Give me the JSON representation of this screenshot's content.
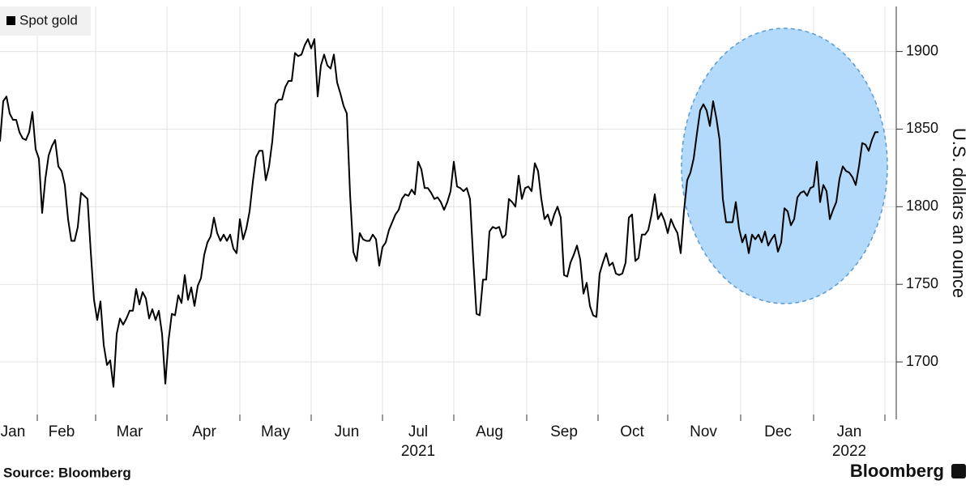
{
  "chart_data": {
    "type": "line",
    "y_label": "U.S. dollars an ounce",
    "source": "Source: Bloomberg",
    "logo": "Bloomberg",
    "categories": [
      null,
      null,
      null,
      null,
      "Jan",
      null,
      null,
      null,
      null,
      null,
      null,
      null,
      null,
      null,
      null,
      null,
      null,
      null,
      null,
      "Feb",
      null,
      null,
      null,
      null,
      null,
      null,
      null,
      null,
      null,
      null,
      null,
      null,
      null,
      null,
      null,
      null,
      null,
      null,
      null,
      null,
      "Mar",
      null,
      null,
      null,
      null,
      null,
      null,
      null,
      null,
      null,
      null,
      null,
      null,
      null,
      null,
      null,
      null,
      null,
      null,
      null,
      null,
      null,
      null,
      "Apr",
      null,
      null,
      null,
      null,
      null,
      null,
      null,
      null,
      null,
      null,
      null,
      null,
      null,
      null,
      null,
      null,
      null,
      null,
      null,
      null,
      null,
      "May",
      null,
      null,
      null,
      null,
      null,
      null,
      null,
      null,
      null,
      null,
      null,
      null,
      null,
      null,
      null,
      null,
      null,
      null,
      null,
      null,
      null,
      "Jun",
      null,
      null,
      null,
      null,
      null,
      null,
      null,
      null,
      null,
      null,
      null,
      null,
      null,
      null,
      null,
      null,
      null,
      null,
      null,
      null,
      null,
      "Jul",
      null,
      null,
      null,
      null,
      null,
      null,
      null,
      null,
      null,
      null,
      null,
      null,
      null,
      null,
      null,
      null,
      null,
      null,
      null,
      null,
      null,
      "Aug",
      null,
      null,
      null,
      null,
      null,
      null,
      null,
      null,
      null,
      null,
      null,
      null,
      null,
      null,
      null,
      null,
      null,
      null,
      null,
      null,
      null,
      null,
      "Sep",
      null,
      null,
      null,
      null,
      null,
      null,
      null,
      null,
      null,
      null,
      null,
      null,
      null,
      null,
      null,
      null,
      null,
      null,
      null,
      null,
      "Oct",
      null,
      null,
      null,
      null,
      null,
      null,
      null,
      null,
      null,
      null,
      null,
      null,
      null,
      null,
      null,
      null,
      null,
      null,
      null,
      null,
      null,
      "Nov",
      null,
      null,
      null,
      null,
      null,
      null,
      null,
      null,
      null,
      null,
      null,
      null,
      null,
      null,
      null,
      null,
      null,
      null,
      null,
      null,
      null,
      null,
      "Dec",
      null,
      null,
      null,
      null,
      null,
      null,
      null,
      null,
      null,
      null,
      null,
      null,
      null,
      null,
      null,
      null,
      null,
      null,
      null,
      null,
      null,
      "Jan",
      null,
      null,
      null,
      null,
      null,
      null,
      null,
      null,
      null
    ],
    "category_years": [
      null,
      null,
      null,
      null,
      null,
      null,
      null,
      null,
      null,
      null,
      null,
      null,
      null,
      null,
      null,
      null,
      null,
      null,
      null,
      null,
      null,
      null,
      null,
      null,
      null,
      null,
      null,
      null,
      null,
      null,
      null,
      null,
      null,
      null,
      null,
      null,
      null,
      null,
      null,
      null,
      null,
      null,
      null,
      null,
      null,
      null,
      null,
      null,
      null,
      null,
      null,
      null,
      null,
      null,
      null,
      null,
      null,
      null,
      null,
      null,
      null,
      null,
      null,
      null,
      null,
      null,
      null,
      null,
      null,
      null,
      null,
      null,
      null,
      null,
      null,
      null,
      null,
      null,
      null,
      null,
      null,
      null,
      null,
      null,
      null,
      null,
      null,
      null,
      null,
      null,
      null,
      null,
      null,
      null,
      null,
      null,
      null,
      null,
      null,
      null,
      null,
      null,
      null,
      null,
      null,
      null,
      null,
      null,
      null,
      null,
      null,
      null,
      null,
      null,
      null,
      null,
      null,
      null,
      null,
      null,
      null,
      null,
      null,
      null,
      null,
      null,
      null,
      null,
      null,
      "2021",
      null,
      null,
      null,
      null,
      null,
      null,
      null,
      null,
      null,
      null,
      null,
      null,
      null,
      null,
      null,
      null,
      null,
      null,
      null,
      null,
      null,
      null,
      null,
      null,
      null,
      null,
      null,
      null,
      null,
      null,
      null,
      null,
      null,
      null,
      null,
      null,
      null,
      null,
      null,
      null,
      null,
      null,
      null,
      null,
      null,
      null,
      null,
      null,
      null,
      null,
      null,
      null,
      null,
      null,
      null,
      null,
      null,
      null,
      null,
      null,
      null,
      null,
      null,
      null,
      null,
      null,
      null,
      null,
      null,
      null,
      null,
      null,
      null,
      null,
      null,
      null,
      null,
      null,
      null,
      null,
      null,
      null,
      null,
      null,
      null,
      null,
      null,
      null,
      null,
      null,
      null,
      null,
      null,
      null,
      null,
      null,
      null,
      null,
      null,
      null,
      null,
      null,
      null,
      null,
      null,
      null,
      null,
      null,
      null,
      null,
      null,
      null,
      null,
      null,
      null,
      null,
      null,
      null,
      null,
      null,
      null,
      null,
      null,
      null,
      null,
      null,
      null,
      null,
      null,
      null,
      null,
      null,
      "2022",
      null,
      null,
      null,
      null,
      null,
      null,
      null,
      null,
      null
    ],
    "series": [
      {
        "name": "Spot gold",
        "color": "#000000",
        "values": [
          1842,
          1868,
          1871,
          1860,
          1856,
          1856,
          1848,
          1844,
          1843,
          1848,
          1861,
          1837,
          1831,
          1796,
          1818,
          1833,
          1839,
          1843,
          1826,
          1823,
          1814,
          1792,
          1778,
          1778,
          1787,
          1809,
          1807,
          1805,
          1771,
          1740,
          1727,
          1739,
          1711,
          1698,
          1701,
          1684,
          1718,
          1728,
          1724,
          1728,
          1733,
          1733,
          1747,
          1737,
          1745,
          1741,
          1728,
          1734,
          1727,
          1733,
          1718,
          1686,
          1714,
          1731,
          1730,
          1743,
          1738,
          1756,
          1740,
          1748,
          1736,
          1749,
          1754,
          1769,
          1777,
          1781,
          1793,
          1783,
          1778,
          1782,
          1778,
          1782,
          1773,
          1770,
          1792,
          1779,
          1786,
          1797,
          1816,
          1832,
          1836,
          1836,
          1817,
          1826,
          1842,
          1866,
          1869,
          1869,
          1877,
          1881,
          1881,
          1899,
          1897,
          1898,
          1904,
          1908,
          1902,
          1908,
          1871,
          1891,
          1898,
          1891,
          1889,
          1898,
          1880,
          1873,
          1865,
          1860,
          1808,
          1771,
          1765,
          1783,
          1779,
          1778,
          1778,
          1782,
          1779,
          1762,
          1774,
          1777,
          1785,
          1790,
          1795,
          1798,
          1805,
          1808,
          1807,
          1811,
          1808,
          1829,
          1824,
          1812,
          1812,
          1809,
          1805,
          1806,
          1803,
          1798,
          1803,
          1810,
          1829,
          1813,
          1812,
          1810,
          1812,
          1805,
          1766,
          1731,
          1730,
          1753,
          1753,
          1784,
          1787,
          1786,
          1787,
          1780,
          1782,
          1805,
          1803,
          1800,
          1820,
          1805,
          1812,
          1813,
          1810,
          1828,
          1823,
          1805,
          1792,
          1795,
          1788,
          1795,
          1800,
          1793,
          1756,
          1755,
          1764,
          1769,
          1775,
          1766,
          1744,
          1751,
          1736,
          1730,
          1729,
          1757,
          1764,
          1770,
          1762,
          1764,
          1757,
          1756,
          1757,
          1764,
          1793,
          1795,
          1765,
          1767,
          1782,
          1782,
          1785,
          1795,
          1808,
          1792,
          1796,
          1791,
          1783,
          1792,
          1787,
          1783,
          1770,
          1797,
          1817,
          1822,
          1831,
          1847,
          1862,
          1866,
          1862,
          1852,
          1868,
          1857,
          1843,
          1805,
          1790,
          1790,
          1790,
          1803,
          1786,
          1777,
          1782,
          1770,
          1782,
          1779,
          1782,
          1777,
          1784,
          1775,
          1779,
          1782,
          1771,
          1777,
          1799,
          1797,
          1788,
          1792,
          1806,
          1809,
          1810,
          1807,
          1812,
          1813,
          1829,
          1803,
          1814,
          1810,
          1792,
          1798,
          1803,
          1818,
          1826,
          1823,
          1822,
          1819,
          1814,
          1826,
          1841,
          1840,
          1836,
          1843,
          1848,
          1848
        ]
      }
    ],
    "ylim": [
      1663,
      1929
    ],
    "yticks": [
      1700,
      1750,
      1800,
      1850,
      1900
    ],
    "grid": true,
    "legend": "top-left"
  }
}
